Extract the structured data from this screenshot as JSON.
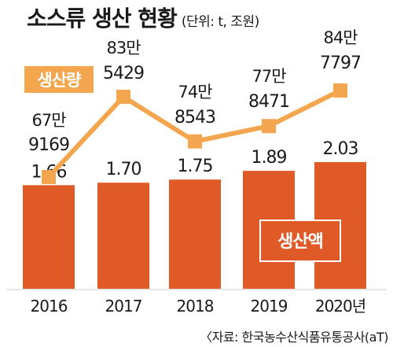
{
  "title": "소스류 생산 현황",
  "unit": "(단위: t, 조원)",
  "source": "〈자료: 한국농수산식품유통공사(aT)",
  "colors": {
    "bar": "#e05a28",
    "line": "#f3a64d",
    "text": "#1a1a1a",
    "white": "#ffffff"
  },
  "chart_data": {
    "type": "bar",
    "categories": [
      "2016",
      "2017",
      "2018",
      "2019",
      "2020년"
    ],
    "series": [
      {
        "name": "생산액",
        "type": "bar",
        "values": [
          1.66,
          1.7,
          1.75,
          1.89,
          2.03
        ],
        "labels": [
          "1.66",
          "1.70",
          "1.75",
          "1.89",
          "2.03"
        ]
      },
      {
        "name": "생산량",
        "type": "line",
        "values": [
          679169,
          835429,
          748543,
          778471,
          847797
        ],
        "labels_top": [
          "67만",
          "83만",
          "74만",
          "77만",
          "84만"
        ],
        "labels_bottom": [
          "9169",
          "5429",
          "8543",
          "8471",
          "7797"
        ]
      }
    ]
  }
}
